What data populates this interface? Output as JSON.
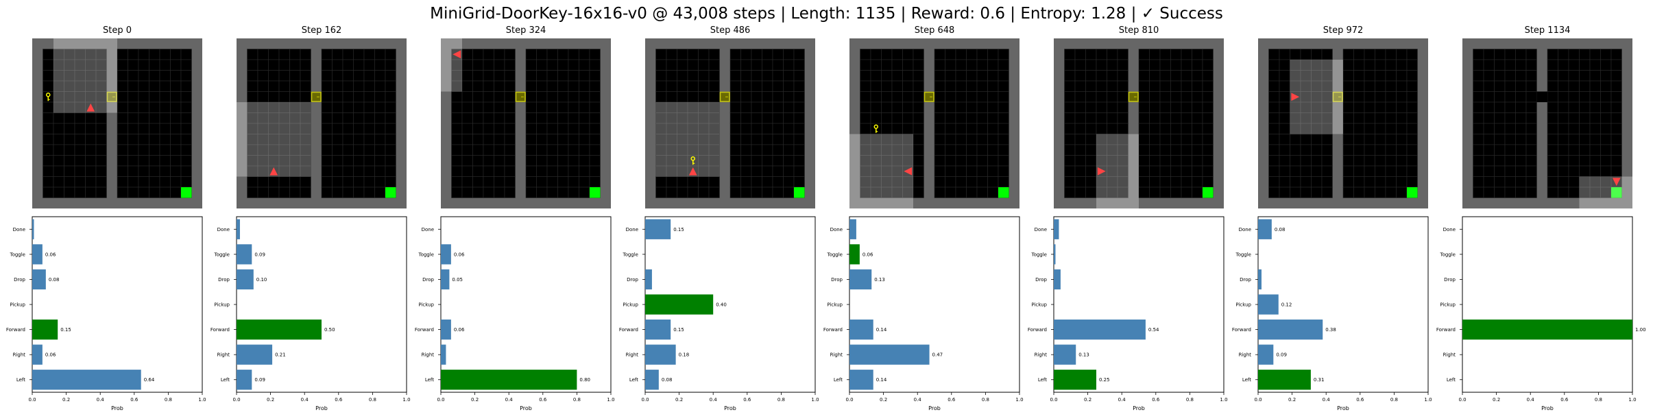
{
  "suptitle": "MiniGrid-DoorKey-16x16-v0 @ 43,008 steps | Length: 1135 | Reward: 0.6 | Entropy: 1.28 | ✓ Success",
  "colors": {
    "wall": "#666666",
    "floor": "#000000",
    "visible_overlay": "#9a9a9a",
    "door": "#c8c800",
    "key": "#ffff00",
    "agent": "#ff4444",
    "goal": "#00ff00",
    "bar": "#4682b4",
    "bar_selected": "#008000"
  },
  "icons": [
    "agent-triangle-icon",
    "key-icon",
    "door-icon",
    "goal-square-icon"
  ],
  "steps": [
    {
      "title": "Step 0",
      "agent": {
        "col": 5,
        "row": 6,
        "dir": "up"
      },
      "view": {
        "c0": 2,
        "r0": 0,
        "c1": 8,
        "r1": 7
      },
      "key": {
        "col": 1,
        "row": 5
      },
      "door": "closed",
      "wall_col": 7,
      "split_col": 1
    },
    {
      "title": "Step 162",
      "agent": {
        "col": 3,
        "row": 12,
        "dir": "up"
      },
      "view": {
        "c0": 0,
        "r0": 6,
        "c1": 7,
        "r1": 13
      },
      "key": null,
      "door": "closed",
      "wall_col": 7
    },
    {
      "title": "Step 324",
      "agent": {
        "col": 1,
        "row": 1,
        "dir": "left"
      },
      "view": {
        "c0": 0,
        "r0": 0,
        "c1": 2,
        "r1": 5
      },
      "key": null,
      "door": "closed",
      "wall_col": 7
    },
    {
      "title": "Step 486",
      "agent": {
        "col": 4,
        "row": 12,
        "dir": "up"
      },
      "view": {
        "c0": 1,
        "r0": 6,
        "c1": 7,
        "r1": 13
      },
      "key": {
        "col": 4,
        "row": 11
      },
      "door": "closed",
      "wall_col": 7
    },
    {
      "title": "Step 648",
      "agent": {
        "col": 5,
        "row": 12,
        "dir": "left"
      },
      "view": {
        "c0": 0,
        "r0": 9,
        "c1": 6,
        "r1": 16
      },
      "key": {
        "col": 2,
        "row": 8
      },
      "door": "closed",
      "wall_col": 7
    },
    {
      "title": "Step 810",
      "agent": {
        "col": 4,
        "row": 12,
        "dir": "right"
      },
      "view": {
        "c0": 4,
        "r0": 9,
        "c1": 8,
        "r1": 16
      },
      "key": null,
      "door": "closed",
      "wall_col": 7
    },
    {
      "title": "Step 972",
      "agent": {
        "col": 3,
        "row": 5,
        "dir": "right"
      },
      "view": {
        "c0": 3,
        "r0": 2,
        "c1": 8,
        "r1": 9
      },
      "key": null,
      "door": "closed",
      "wall_col": 7
    },
    {
      "title": "Step 1134",
      "agent": {
        "col": 14,
        "row": 13,
        "dir": "down"
      },
      "view": {
        "c0": 11,
        "r0": 13,
        "c1": 16,
        "r1": 16
      },
      "key": null,
      "door": "open",
      "wall_col": 7
    }
  ],
  "chart_data": [
    {
      "type": "bar",
      "title": "Step 0",
      "xlabel": "Prob",
      "xlim": [
        0,
        1
      ],
      "orientation": "horizontal",
      "categories": [
        "Left",
        "Right",
        "Forward",
        "Pickup",
        "Drop",
        "Toggle",
        "Done"
      ],
      "values": [
        0.64,
        0.06,
        0.15,
        0.0,
        0.08,
        0.06,
        0.01
      ],
      "labels": [
        "0.64",
        "0.06",
        "0.15",
        "",
        "0.08",
        "0.06",
        ""
      ],
      "selected": "Forward",
      "xticks": [
        "0.0",
        "0.2",
        "0.4",
        "0.6",
        "0.8",
        "1.0"
      ]
    },
    {
      "type": "bar",
      "title": "Step 162",
      "xlabel": "Prob",
      "xlim": [
        0,
        1
      ],
      "orientation": "horizontal",
      "categories": [
        "Left",
        "Right",
        "Forward",
        "Pickup",
        "Drop",
        "Toggle",
        "Done"
      ],
      "values": [
        0.09,
        0.21,
        0.5,
        0.0,
        0.1,
        0.09,
        0.02
      ],
      "labels": [
        "0.09",
        "0.21",
        "0.50",
        "",
        "0.10",
        "0.09",
        ""
      ],
      "selected": "Forward",
      "xticks": [
        "0.0",
        "0.2",
        "0.4",
        "0.6",
        "0.8",
        "1.0"
      ]
    },
    {
      "type": "bar",
      "title": "Step 324",
      "xlabel": "Prob",
      "xlim": [
        0,
        1
      ],
      "orientation": "horizontal",
      "categories": [
        "Left",
        "Right",
        "Forward",
        "Pickup",
        "Drop",
        "Toggle",
        "Done"
      ],
      "values": [
        0.8,
        0.03,
        0.06,
        0.0,
        0.05,
        0.06,
        0.0
      ],
      "labels": [
        "0.80",
        "",
        "0.06",
        "",
        "0.05",
        "0.06",
        ""
      ],
      "selected": "Left",
      "xticks": [
        "0.0",
        "0.2",
        "0.4",
        "0.6",
        "0.8",
        "1.0"
      ]
    },
    {
      "type": "bar",
      "title": "Step 486",
      "xlabel": "Prob",
      "xlim": [
        0,
        1
      ],
      "orientation": "horizontal",
      "categories": [
        "Left",
        "Right",
        "Forward",
        "Pickup",
        "Drop",
        "Toggle",
        "Done"
      ],
      "values": [
        0.08,
        0.18,
        0.15,
        0.4,
        0.04,
        0.0,
        0.15
      ],
      "labels": [
        "0.08",
        "0.18",
        "0.15",
        "0.40",
        "",
        "",
        "0.15"
      ],
      "selected": "Pickup",
      "xticks": [
        "0.0",
        "0.2",
        "0.4",
        "0.6",
        "0.8",
        "1.0"
      ]
    },
    {
      "type": "bar",
      "title": "Step 648",
      "xlabel": "Prob",
      "xlim": [
        0,
        1
      ],
      "orientation": "horizontal",
      "categories": [
        "Left",
        "Right",
        "Forward",
        "Pickup",
        "Drop",
        "Toggle",
        "Done"
      ],
      "values": [
        0.14,
        0.47,
        0.14,
        0.0,
        0.13,
        0.06,
        0.04
      ],
      "labels": [
        "0.14",
        "0.47",
        "0.14",
        "",
        "0.13",
        "0.06",
        ""
      ],
      "selected": "Toggle",
      "xticks": [
        "0.0",
        "0.2",
        "0.4",
        "0.6",
        "0.8",
        "1.0"
      ]
    },
    {
      "type": "bar",
      "title": "Step 810",
      "xlabel": "Prob",
      "xlim": [
        0,
        1
      ],
      "orientation": "horizontal",
      "categories": [
        "Left",
        "Right",
        "Forward",
        "Pickup",
        "Drop",
        "Toggle",
        "Done"
      ],
      "values": [
        0.25,
        0.13,
        0.54,
        0.0,
        0.04,
        0.01,
        0.03
      ],
      "labels": [
        "0.25",
        "0.13",
        "0.54",
        "",
        "",
        "",
        ""
      ],
      "selected": "Left",
      "xticks": [
        "0.0",
        "0.2",
        "0.4",
        "0.6",
        "0.8",
        "1.0"
      ]
    },
    {
      "type": "bar",
      "title": "Step 972",
      "xlabel": "Prob",
      "xlim": [
        0,
        1
      ],
      "orientation": "horizontal",
      "categories": [
        "Left",
        "Right",
        "Forward",
        "Pickup",
        "Drop",
        "Toggle",
        "Done"
      ],
      "values": [
        0.31,
        0.09,
        0.38,
        0.12,
        0.02,
        0.0,
        0.08
      ],
      "labels": [
        "0.31",
        "0.09",
        "0.38",
        "0.12",
        "",
        "",
        "0.08"
      ],
      "selected": "Left",
      "xticks": [
        "0.0",
        "0.2",
        "0.4",
        "0.6",
        "0.8",
        "1.0"
      ]
    },
    {
      "type": "bar",
      "title": "Step 1134",
      "xlabel": "Prob",
      "xlim": [
        0,
        1
      ],
      "orientation": "horizontal",
      "categories": [
        "Left",
        "Right",
        "Forward",
        "Pickup",
        "Drop",
        "Toggle",
        "Done"
      ],
      "values": [
        0.0,
        0.0,
        1.0,
        0.0,
        0.0,
        0.0,
        0.0
      ],
      "labels": [
        "",
        "",
        "1.00",
        "",
        "",
        "",
        ""
      ],
      "selected": "Forward",
      "xticks": [
        "0.0",
        "0.2",
        "0.4",
        "0.6",
        "0.8",
        "1.0"
      ]
    }
  ]
}
